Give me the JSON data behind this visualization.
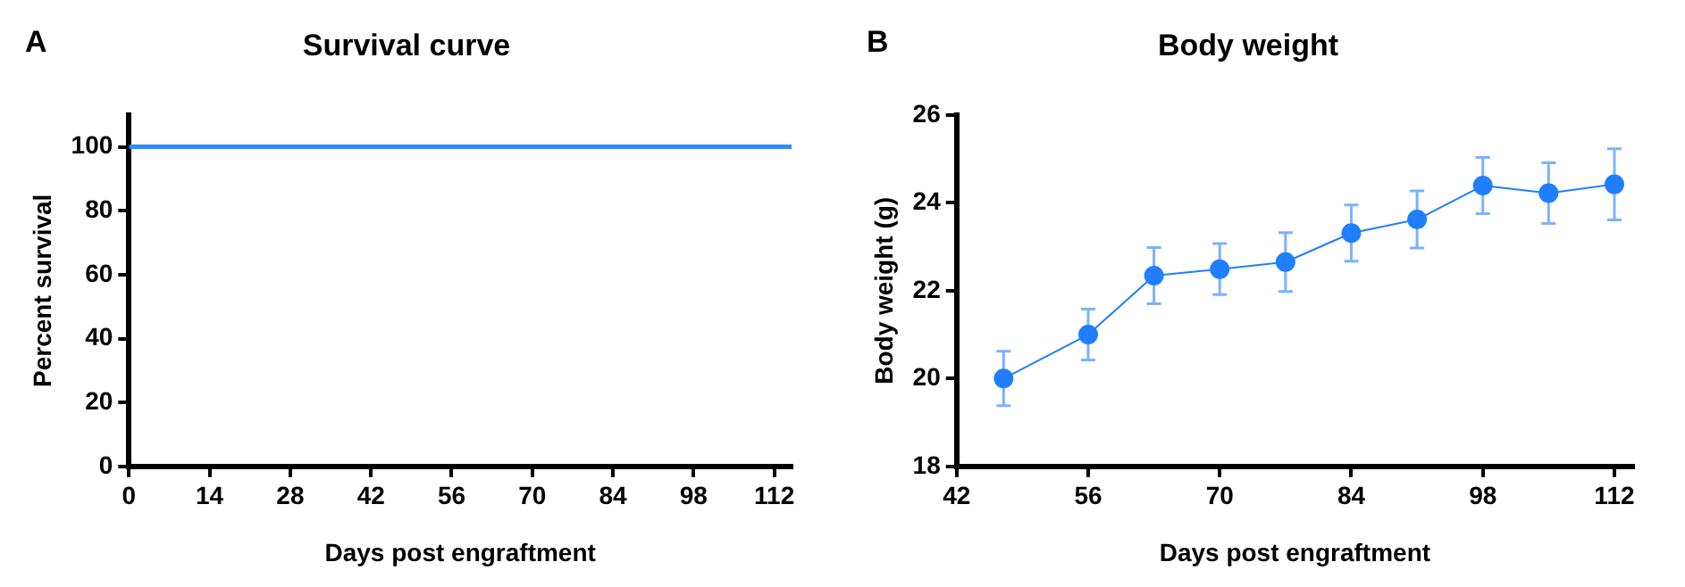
{
  "chart_data": [
    {
      "type": "step",
      "title": "Survival curve",
      "xlabel": "Days post engraftment",
      "ylabel": "Percent survival",
      "annotations": [
        "A"
      ],
      "series": [
        {
          "color": "#2b8cff",
          "x": [
            0,
            115
          ],
          "values": [
            100,
            100
          ]
        }
      ],
      "xlim": [
        0,
        115
      ],
      "xticks": [
        0,
        14,
        28,
        42,
        56,
        70,
        84,
        98,
        112
      ],
      "ylim": [
        0,
        110
      ],
      "yticks": [
        0,
        20,
        40,
        60,
        80,
        100
      ],
      "grid": false,
      "legend": false,
      "marker": "none",
      "line_style": "solid"
    },
    {
      "type": "line",
      "title": "Body weight",
      "xlabel": "Days post engraftment",
      "ylabel": "Body weight (g)",
      "annotations": [
        "B"
      ],
      "series": [
        {
          "color": "#1f7fff",
          "x": [
            47,
            56,
            63,
            70,
            77,
            84,
            91,
            98,
            105,
            112
          ],
          "values": [
            20.0,
            21.0,
            22.34,
            22.49,
            22.65,
            23.31,
            23.62,
            24.39,
            24.22,
            24.42
          ],
          "errors": [
            0.62,
            0.58,
            0.64,
            0.58,
            0.67,
            0.64,
            0.65,
            0.64,
            0.69,
            0.81
          ]
        }
      ],
      "xlim": [
        42,
        114
      ],
      "xticks": [
        42,
        56,
        70,
        84,
        98,
        112
      ],
      "ylim": [
        18,
        26
      ],
      "yticks": [
        18,
        20,
        22,
        24,
        26
      ],
      "grid": false,
      "legend": false,
      "marker": "circle",
      "line_style": "solid"
    }
  ]
}
